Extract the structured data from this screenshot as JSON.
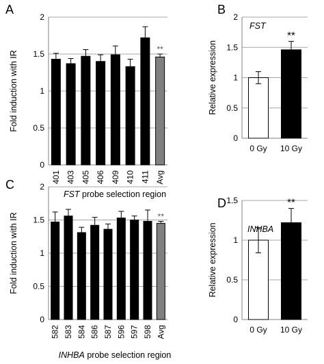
{
  "chart_data": [
    {
      "panel": "A",
      "type": "bar",
      "ylabel": "Fold induction with IR",
      "xlabel_italic": "FST",
      "xlabel_rest": " probe selection region",
      "categories": [
        "401",
        "403",
        "405",
        "406",
        "409",
        "410",
        "411",
        "Avg"
      ],
      "values": [
        1.43,
        1.37,
        1.47,
        1.4,
        1.49,
        1.33,
        1.72,
        1.46
      ],
      "errors": [
        0.08,
        0.07,
        0.09,
        0.09,
        0.12,
        0.1,
        0.15,
        0.04
      ],
      "colors": [
        "#000000",
        "#000000",
        "#000000",
        "#000000",
        "#000000",
        "#000000",
        "#000000",
        "#808080"
      ],
      "significance": [
        {
          "category": "Avg",
          "label": "**"
        }
      ],
      "ylim": [
        0,
        2
      ],
      "yticks": [
        "0",
        "0.5",
        "1",
        "1.5",
        "2"
      ],
      "grid": true
    },
    {
      "panel": "B",
      "type": "bar",
      "ylabel": "Relative expression",
      "gene_label": "FST",
      "categories": [
        "0 Gy",
        "10 Gy"
      ],
      "values": [
        1.0,
        1.46
      ],
      "errors": [
        0.1,
        0.14
      ],
      "colors": [
        "#ffffff",
        "#000000"
      ],
      "significance": [
        {
          "category": "10 Gy",
          "label": "**"
        }
      ],
      "ylim": [
        0,
        2
      ],
      "yticks": [
        "0",
        "0.5",
        "1",
        "1.5",
        "2"
      ],
      "grid": true
    },
    {
      "panel": "C",
      "type": "bar",
      "ylabel": "Fold induction with IR",
      "xlabel_italic": "INHBA",
      "xlabel_rest": " probe selection region",
      "categories": [
        "582",
        "583",
        "584",
        "586",
        "587",
        "596",
        "597",
        "598",
        "Avg"
      ],
      "values": [
        1.47,
        1.56,
        1.31,
        1.42,
        1.36,
        1.53,
        1.5,
        1.48,
        1.45
      ],
      "errors": [
        0.15,
        0.1,
        0.08,
        0.12,
        0.08,
        0.1,
        0.06,
        0.17,
        0.03
      ],
      "colors": [
        "#000000",
        "#000000",
        "#000000",
        "#000000",
        "#000000",
        "#000000",
        "#000000",
        "#000000",
        "#808080"
      ],
      "significance": [
        {
          "category": "Avg",
          "label": "**"
        }
      ],
      "ylim": [
        0,
        2
      ],
      "yticks": [
        "0",
        "0.5",
        "1",
        "1.5",
        "2"
      ],
      "grid": true
    },
    {
      "panel": "D",
      "type": "bar",
      "ylabel": "Relative expression",
      "gene_label": "INHBA",
      "categories": [
        "0 Gy",
        "10 Gy"
      ],
      "values": [
        1.0,
        1.22
      ],
      "errors": [
        0.16,
        0.18
      ],
      "colors": [
        "#ffffff",
        "#000000"
      ],
      "significance": [
        {
          "category": "10 Gy",
          "label": "**"
        }
      ],
      "ylim": [
        0,
        1.5
      ],
      "yticks": [
        "0",
        "0.5",
        "1",
        "1.5"
      ],
      "grid": true
    }
  ]
}
